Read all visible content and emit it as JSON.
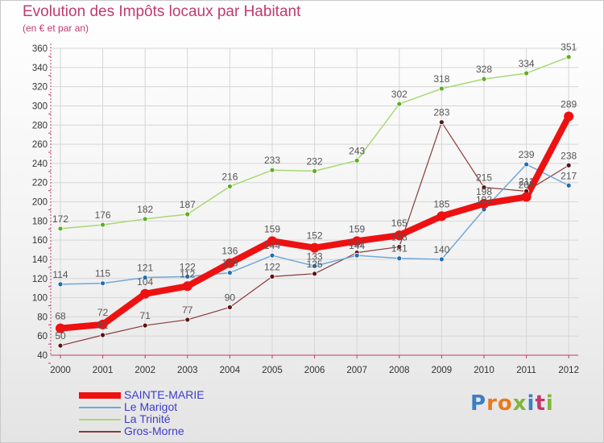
{
  "title": "Evolution des Impôts locaux par Habitant",
  "subtitle": "(en € et par an)",
  "brand": {
    "text": "Proxiti",
    "letter_colors": [
      "#3d7ec4",
      "#e87a1e",
      "#e87a1e",
      "#7fb83a",
      "#3d7ec4",
      "#c03a6e",
      "#7fb83a"
    ]
  },
  "colors": {
    "axis": "#c03a6e",
    "grid": "#d6d6d6",
    "text": "#333333",
    "label": "#555555"
  },
  "chart_data": {
    "type": "line",
    "title": "Evolution des Impôts locaux par Habitant",
    "subtitle": "(en € et par an)",
    "xlabel": "",
    "ylabel": "",
    "x": [
      "2000",
      "2001",
      "2002",
      "2003",
      "2004",
      "2005",
      "2006",
      "2007",
      "2008",
      "2009",
      "2010",
      "2011",
      "2012"
    ],
    "ylim": [
      40,
      360
    ],
    "yticks": [
      "40",
      "60",
      "80",
      "100",
      "120",
      "140",
      "160",
      "180",
      "200",
      "220",
      "240",
      "260",
      "280",
      "300",
      "320",
      "340",
      "360"
    ],
    "grid": true,
    "legend": "bottom-left",
    "series": [
      {
        "name": "SAINTE-MARIE",
        "color": "#ee1111",
        "dark": "#a00000",
        "width": 8,
        "dot": 6,
        "values": [
          68,
          72,
          104,
          112,
          136,
          159,
          152,
          159,
          165,
          185,
          198,
          205,
          289
        ],
        "labels": [
          "68",
          "72",
          "104",
          "112",
          "136",
          "159",
          "152",
          "159",
          "165",
          "185",
          "198",
          "205",
          "289"
        ]
      },
      {
        "name": "Le Marigot",
        "color": "#6fa8d8",
        "dark": "#1f6fb5",
        "width": 1.5,
        "dot": 3,
        "values": [
          114,
          115,
          121,
          122,
          126,
          144,
          133,
          144,
          141,
          140,
          192,
          239,
          217
        ],
        "labels": [
          "114",
          "115",
          "121",
          "122",
          "126",
          "144",
          "133",
          "144",
          "141",
          "140",
          "192",
          "239",
          "217"
        ]
      },
      {
        "name": "La Trinité",
        "color": "#a8d873",
        "dark": "#5fae1f",
        "width": 1.5,
        "dot": 3,
        "values": [
          172,
          176,
          182,
          187,
          216,
          233,
          232,
          243,
          302,
          318,
          328,
          334,
          351
        ],
        "labels": [
          "172",
          "176",
          "182",
          "187",
          "216",
          "233",
          "232",
          "243",
          "302",
          "318",
          "328",
          "334",
          "351"
        ]
      },
      {
        "name": "Gros-Morne",
        "color": "#8a3a3a",
        "dark": "#5a1414",
        "width": 1.2,
        "dot": 3,
        "values": [
          50,
          61,
          71,
          77,
          90,
          122,
          125,
          147,
          153,
          283,
          215,
          211,
          238
        ],
        "labels": [
          "50",
          "61",
          "71",
          "77",
          "90",
          "122",
          "125",
          "147",
          "153",
          "283",
          "215",
          "211",
          "238"
        ]
      }
    ]
  },
  "legend": [
    {
      "label": "SAINTE-MARIE",
      "color": "#ee1111",
      "text_color": "#3c3ccc",
      "thickness": 8
    },
    {
      "label": "Le Marigot",
      "color": "#6fa8d8",
      "text_color": "#3c3ccc",
      "thickness": 2
    },
    {
      "label": "La Trinité",
      "color": "#a8d873",
      "text_color": "#3c3ccc",
      "thickness": 2
    },
    {
      "label": "Gros-Morne",
      "color": "#8a3a3a",
      "text_color": "#3c3ccc",
      "thickness": 2
    }
  ]
}
